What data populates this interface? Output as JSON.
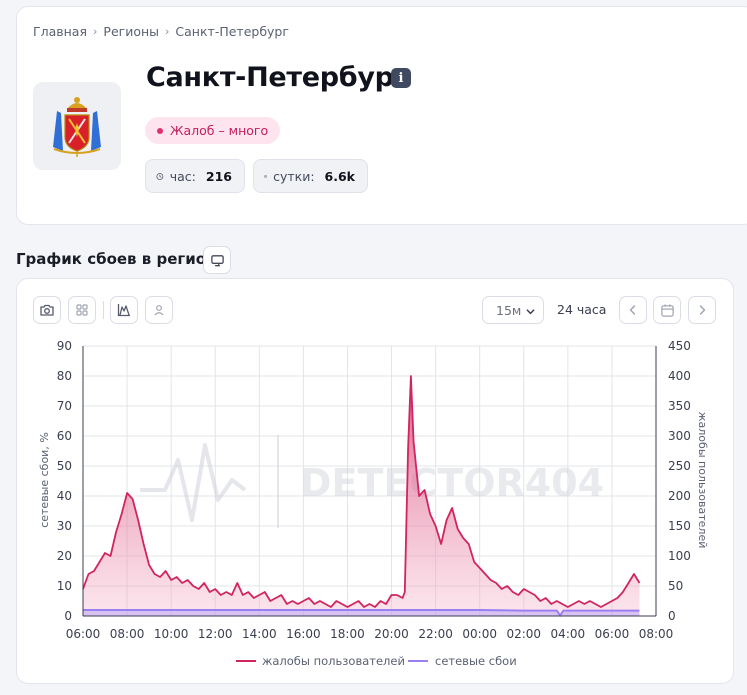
{
  "breadcrumb": {
    "items": [
      "Главная",
      "Регионы",
      "Санкт-Петербург"
    ]
  },
  "region": {
    "title": "Санкт-Петербург",
    "status": "Жалоб – много",
    "stats": {
      "hour_label": "час:",
      "hour_value": "216",
      "day_label": "сутки:",
      "day_value": "6.6k"
    }
  },
  "section": {
    "title": "График сбоев в регионе"
  },
  "toolbar": {
    "interval": "15м",
    "range": "24 часа"
  },
  "colors": {
    "complaints": "#d0255f",
    "outages": "#9b7ff2",
    "accent": "#c41f5e"
  },
  "icons": [
    "camera-icon",
    "grid-icon",
    "chart-area-icon",
    "user-icon",
    "chevron-down-icon",
    "chevron-left-icon",
    "calendar-icon",
    "chevron-right-icon",
    "clock-icon",
    "info-icon",
    "screen-icon"
  ],
  "chart_data": {
    "type": "line",
    "watermark": "DETECTOR404",
    "x_ticks": [
      "06:00",
      "08:00",
      "10:00",
      "12:00",
      "14:00",
      "16:00",
      "18:00",
      "20:00",
      "22:00",
      "00:00",
      "02:00",
      "04:00",
      "06:00",
      "08:00"
    ],
    "y_left": {
      "label": "сетевые сбои, %",
      "range": [
        0,
        90
      ],
      "ticks": [
        0,
        10,
        20,
        30,
        40,
        50,
        60,
        70,
        80,
        90
      ]
    },
    "y_right": {
      "label": "жалобы пользователей",
      "range": [
        0,
        450
      ],
      "ticks": [
        0,
        50,
        100,
        150,
        200,
        250,
        300,
        350,
        400,
        450
      ]
    },
    "grid": true,
    "legend_position": "bottom",
    "series": [
      {
        "name": "жалобы пользователей",
        "axis": "right",
        "points": [
          [
            6.0,
            45
          ],
          [
            6.25,
            70
          ],
          [
            6.5,
            75
          ],
          [
            6.75,
            90
          ],
          [
            7.0,
            105
          ],
          [
            7.25,
            100
          ],
          [
            7.5,
            140
          ],
          [
            7.75,
            170
          ],
          [
            8.0,
            205
          ],
          [
            8.25,
            195
          ],
          [
            8.5,
            160
          ],
          [
            8.75,
            120
          ],
          [
            9.0,
            85
          ],
          [
            9.25,
            70
          ],
          [
            9.5,
            65
          ],
          [
            9.75,
            75
          ],
          [
            10.0,
            60
          ],
          [
            10.25,
            65
          ],
          [
            10.5,
            55
          ],
          [
            10.75,
            60
          ],
          [
            11.0,
            50
          ],
          [
            11.25,
            45
          ],
          [
            11.5,
            55
          ],
          [
            11.75,
            40
          ],
          [
            12.0,
            45
          ],
          [
            12.25,
            35
          ],
          [
            12.5,
            40
          ],
          [
            12.75,
            35
          ],
          [
            13.0,
            55
          ],
          [
            13.25,
            35
          ],
          [
            13.5,
            40
          ],
          [
            13.75,
            30
          ],
          [
            14.0,
            35
          ],
          [
            14.25,
            40
          ],
          [
            14.5,
            25
          ],
          [
            14.75,
            30
          ],
          [
            15.0,
            35
          ],
          [
            15.25,
            20
          ],
          [
            15.5,
            25
          ],
          [
            15.75,
            20
          ],
          [
            16.0,
            25
          ],
          [
            16.25,
            30
          ],
          [
            16.5,
            20
          ],
          [
            16.75,
            25
          ],
          [
            17.0,
            20
          ],
          [
            17.25,
            15
          ],
          [
            17.5,
            25
          ],
          [
            17.75,
            20
          ],
          [
            18.0,
            15
          ],
          [
            18.25,
            20
          ],
          [
            18.5,
            25
          ],
          [
            18.75,
            15
          ],
          [
            19.0,
            20
          ],
          [
            19.25,
            15
          ],
          [
            19.5,
            25
          ],
          [
            19.75,
            20
          ],
          [
            20.0,
            35
          ],
          [
            20.25,
            35
          ],
          [
            20.5,
            30
          ],
          [
            20.6,
            40
          ],
          [
            20.75,
            280
          ],
          [
            20.88,
            400
          ],
          [
            21.0,
            290
          ],
          [
            21.25,
            200
          ],
          [
            21.5,
            210
          ],
          [
            21.75,
            170
          ],
          [
            22.0,
            150
          ],
          [
            22.25,
            120
          ],
          [
            22.5,
            160
          ],
          [
            22.75,
            180
          ],
          [
            23.0,
            145
          ],
          [
            23.25,
            130
          ],
          [
            23.5,
            120
          ],
          [
            23.75,
            90
          ],
          [
            24.0,
            80
          ],
          [
            24.25,
            70
          ],
          [
            24.5,
            60
          ],
          [
            24.75,
            55
          ],
          [
            25.0,
            45
          ],
          [
            25.25,
            50
          ],
          [
            25.5,
            40
          ],
          [
            25.75,
            35
          ],
          [
            26.0,
            45
          ],
          [
            26.25,
            40
          ],
          [
            26.5,
            35
          ],
          [
            26.75,
            25
          ],
          [
            27.0,
            30
          ],
          [
            27.25,
            20
          ],
          [
            27.5,
            25
          ],
          [
            27.75,
            20
          ],
          [
            28.0,
            15
          ],
          [
            28.25,
            20
          ],
          [
            28.5,
            25
          ],
          [
            28.75,
            20
          ],
          [
            29.0,
            25
          ],
          [
            29.25,
            20
          ],
          [
            29.5,
            15
          ],
          [
            29.75,
            20
          ],
          [
            30.0,
            25
          ],
          [
            30.25,
            30
          ],
          [
            30.5,
            40
          ],
          [
            30.75,
            55
          ],
          [
            31.0,
            70
          ],
          [
            31.25,
            55
          ]
        ]
      },
      {
        "name": "сетевые сбои",
        "axis": "left",
        "points": [
          [
            6.0,
            2
          ],
          [
            8.0,
            2
          ],
          [
            10.0,
            2
          ],
          [
            12.0,
            2
          ],
          [
            14.0,
            2
          ],
          [
            16.0,
            2
          ],
          [
            18.0,
            2
          ],
          [
            20.0,
            2
          ],
          [
            22.0,
            2
          ],
          [
            24.0,
            2
          ],
          [
            26.0,
            1.8
          ],
          [
            27.5,
            1.8
          ],
          [
            27.65,
            0.2
          ],
          [
            27.8,
            1.8
          ],
          [
            30.0,
            1.8
          ],
          [
            31.25,
            1.8
          ]
        ]
      }
    ]
  }
}
